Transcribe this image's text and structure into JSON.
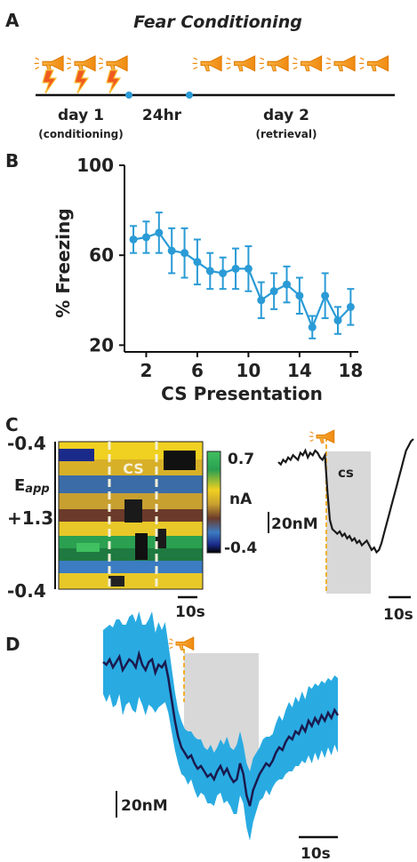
{
  "panels": {
    "a": {
      "letter": "A",
      "title": "Fear Conditioning",
      "day1": "day 1",
      "day1_sub": "(conditioning)",
      "gap": "24hr",
      "day2": "day 2",
      "day2_sub": "(retrieval)",
      "day1_cs_count": 3,
      "day2_cs_count": 6,
      "horn_icon": "horn-icon",
      "shock_icon": "lightning-bolt-icon",
      "timeline_marker_color": "#2a9bd6"
    },
    "b": {
      "letter": "B",
      "ylabel": "% Freezing",
      "xlabel": "CS Presentation"
    },
    "c": {
      "letter": "C",
      "eapp_main": "E",
      "eapp_sub": "app",
      "y_ticks": [
        "-0.4",
        "+1.3",
        "-0.4"
      ],
      "cs_label": "CS",
      "colorbar_max": "0.7",
      "colorbar_unit": "nA",
      "colorbar_min": "-0.4",
      "scale_time": "10s",
      "trace_cs_label": "cs",
      "trace_scale_conc": "20nM",
      "trace_scale_time": "10s"
    },
    "d": {
      "letter": "D",
      "scale_conc": "20nM",
      "scale_time": "10s",
      "mean_color": "#1a1a4e",
      "sem_color": "#29abe2"
    }
  },
  "chart_data": [
    {
      "type": "line",
      "panel": "B",
      "xlabel": "CS Presentation",
      "ylabel": "% Freezing",
      "x": [
        1,
        2,
        3,
        4,
        5,
        6,
        7,
        8,
        9,
        10,
        11,
        12,
        13,
        14,
        15,
        16,
        17,
        18
      ],
      "series": [
        {
          "values": [
            67,
            68,
            70,
            62,
            61,
            57,
            53,
            52,
            54,
            54,
            40,
            44,
            47,
            42,
            28,
            42,
            31,
            37
          ],
          "errors": [
            6,
            7,
            9,
            10,
            11,
            10,
            8,
            7,
            9,
            10,
            8,
            8,
            8,
            8,
            5,
            10,
            6,
            8
          ],
          "color": "#2a9bd6"
        }
      ],
      "xlim": [
        0.3,
        18.6
      ],
      "ylim": [
        17,
        100
      ],
      "xticks": [
        2,
        6,
        10,
        14,
        18
      ],
      "yticks": [
        20,
        60,
        100
      ],
      "grid": false
    },
    {
      "type": "heatmap",
      "panel": "C",
      "colorbar_range": [
        -0.4,
        0.7
      ],
      "colorbar_unit": "nA",
      "colormap": [
        "#000000",
        "#1a2a8a",
        "#3b7cc2",
        "#6b3a2a",
        "#c8a030",
        "#f0d020",
        "#2aa050",
        "#40c060"
      ]
    },
    {
      "type": "line",
      "panel": "C-trace",
      "series": [
        {
          "values": [
            25,
            24,
            26,
            25,
            27,
            26,
            28,
            27,
            26,
            29,
            28,
            30,
            27,
            29,
            28,
            30,
            29,
            27,
            26,
            28,
            12,
            0,
            -4,
            -5,
            -6,
            -5,
            -7,
            -6,
            -8,
            -7,
            -9,
            -8,
            -10,
            -9,
            -11,
            -10,
            -9,
            -11,
            -13,
            -12,
            -14,
            -13,
            -10,
            -6,
            -2,
            2,
            6,
            10,
            14,
            18,
            22,
            26,
            30,
            32,
            34,
            35
          ],
          "color": "#1a1a1a"
        }
      ]
    },
    {
      "type": "area",
      "panel": "D",
      "series": [
        {
          "name": "mean",
          "values": [
            30,
            29,
            31,
            28,
            30,
            32,
            27,
            29,
            31,
            30,
            28,
            33,
            29,
            27,
            30,
            31,
            26,
            29,
            28,
            30,
            24,
            16,
            8,
            2,
            -2,
            -4,
            -6,
            -5,
            -8,
            -10,
            -9,
            -11,
            -13,
            -12,
            -14,
            -11,
            -9,
            -12,
            -10,
            -13,
            -15,
            -14,
            -8,
            -12,
            -20,
            -24,
            -18,
            -15,
            -12,
            -10,
            -8,
            -9,
            -7,
            -4,
            -2,
            -3,
            0,
            2,
            1,
            4,
            3,
            6,
            4,
            8,
            6,
            9,
            7,
            10,
            8,
            11,
            9,
            12,
            10
          ],
          "color": "#1a1a4e"
        },
        {
          "name": "sem",
          "values": [
            12,
            14,
            13,
            15,
            16,
            14,
            17,
            15,
            16,
            18,
            17,
            16,
            15,
            17,
            16,
            18,
            15,
            16,
            14,
            15,
            13,
            12,
            11,
            10,
            10,
            9,
            10,
            9,
            10,
            11,
            10,
            9,
            10,
            11,
            10,
            9,
            10,
            11,
            12,
            11,
            12,
            13,
            12,
            11,
            12,
            13,
            12,
            11,
            10,
            11,
            10,
            11,
            10,
            11,
            12,
            11,
            12,
            13,
            12,
            13,
            12,
            13,
            12,
            13,
            14,
            13,
            14,
            13,
            14,
            13,
            14,
            13,
            14
          ],
          "color": "#29abe2"
        }
      ]
    }
  ]
}
